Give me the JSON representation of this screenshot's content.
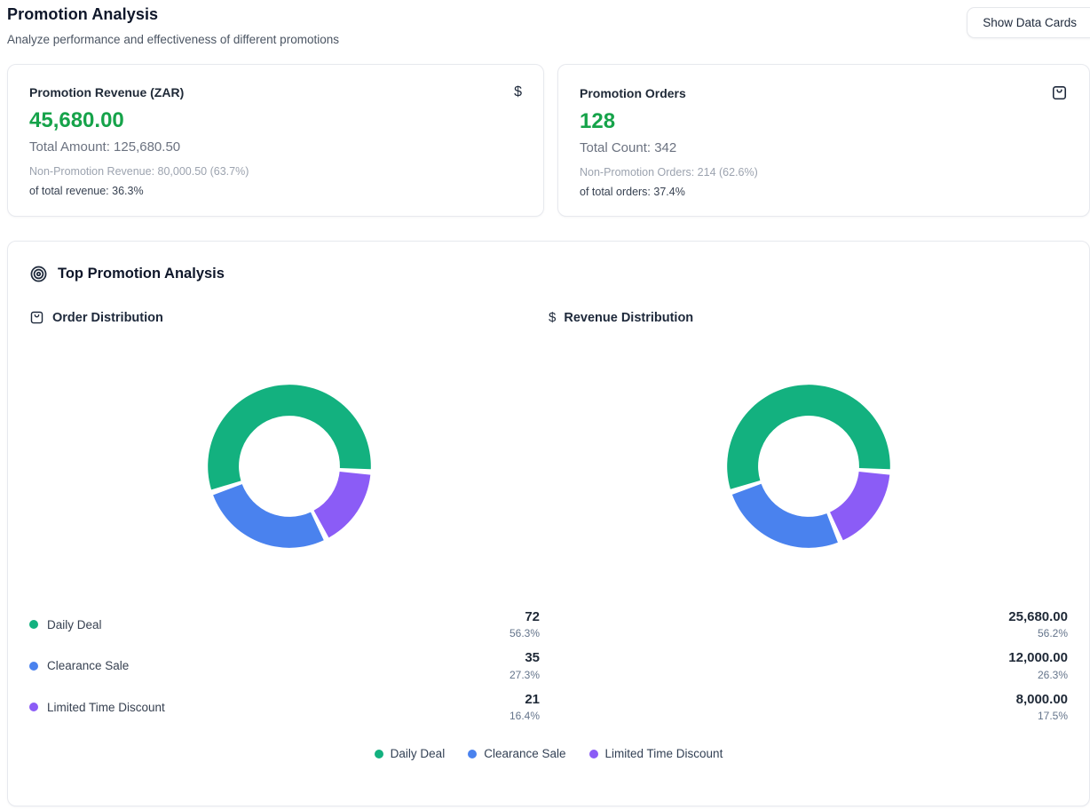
{
  "page": {
    "title": "Promotion Analysis",
    "subtitle": "Analyze performance and effectiveness of different promotions",
    "show_data_cards_label": "Show Data Cards"
  },
  "colors": {
    "green": "#13b17f",
    "blue": "#4a82ee",
    "purple": "#8b5cf6",
    "value_green": "#16a34a"
  },
  "stat_cards": [
    {
      "title": "Promotion Revenue (ZAR)",
      "icon": "dollar-sign-icon",
      "value": "45,680.00",
      "total_line": "Total Amount: 125,680.50",
      "non_promo_line": "Non-Promotion Revenue: 80,000.50 (63.7%)",
      "share_line": "of total revenue: 36.3%"
    },
    {
      "title": "Promotion Orders",
      "icon": "shopping-bag-icon",
      "value": "128",
      "total_line": "Total Count: 342",
      "non_promo_line": "Non-Promotion Orders: 214 (62.6%)",
      "share_line": "of total orders: 37.4%"
    }
  ],
  "analysis": {
    "title": "Top Promotion Analysis",
    "left_chart_title": "Order Distribution",
    "right_chart_title": "Revenue Distribution"
  },
  "chart_data": [
    {
      "type": "pie",
      "variant": "donut",
      "title": "Order Distribution",
      "categories": [
        "Daily Deal",
        "Clearance Sale",
        "Limited Time Discount"
      ],
      "values": [
        72,
        35,
        21
      ],
      "percents": [
        56.3,
        27.3,
        16.4
      ],
      "colors": [
        "#13b17f",
        "#4a82ee",
        "#8b5cf6"
      ],
      "legend_position": "bottom",
      "start_angle_deg": -4,
      "pad_angle_deg": 4,
      "inner_radius_ratio": 0.62
    },
    {
      "type": "pie",
      "variant": "donut",
      "title": "Revenue Distribution",
      "categories": [
        "Daily Deal",
        "Clearance Sale",
        "Limited Time Discount"
      ],
      "values": [
        25680.0,
        12000.0,
        8000.0
      ],
      "value_labels": [
        "25,680.00",
        "12,000.00",
        "8,000.00"
      ],
      "percents": [
        56.2,
        26.3,
        17.5
      ],
      "colors": [
        "#13b17f",
        "#4a82ee",
        "#8b5cf6"
      ],
      "legend_position": "bottom",
      "start_angle_deg": -4,
      "pad_angle_deg": 4,
      "inner_radius_ratio": 0.62
    }
  ],
  "legend_rows": [
    {
      "label": "Daily Deal",
      "color": "#13b17f",
      "orders": "72",
      "orders_pct": "56.3%",
      "revenue": "25,680.00",
      "revenue_pct": "56.2%"
    },
    {
      "label": "Clearance Sale",
      "color": "#4a82ee",
      "orders": "35",
      "orders_pct": "27.3%",
      "revenue": "12,000.00",
      "revenue_pct": "26.3%"
    },
    {
      "label": "Limited Time Discount",
      "color": "#8b5cf6",
      "orders": "21",
      "orders_pct": "16.4%",
      "revenue": "8,000.00",
      "revenue_pct": "17.5%"
    }
  ],
  "bottom_legend": [
    "Daily Deal",
    "Clearance Sale",
    "Limited Time Discount"
  ]
}
